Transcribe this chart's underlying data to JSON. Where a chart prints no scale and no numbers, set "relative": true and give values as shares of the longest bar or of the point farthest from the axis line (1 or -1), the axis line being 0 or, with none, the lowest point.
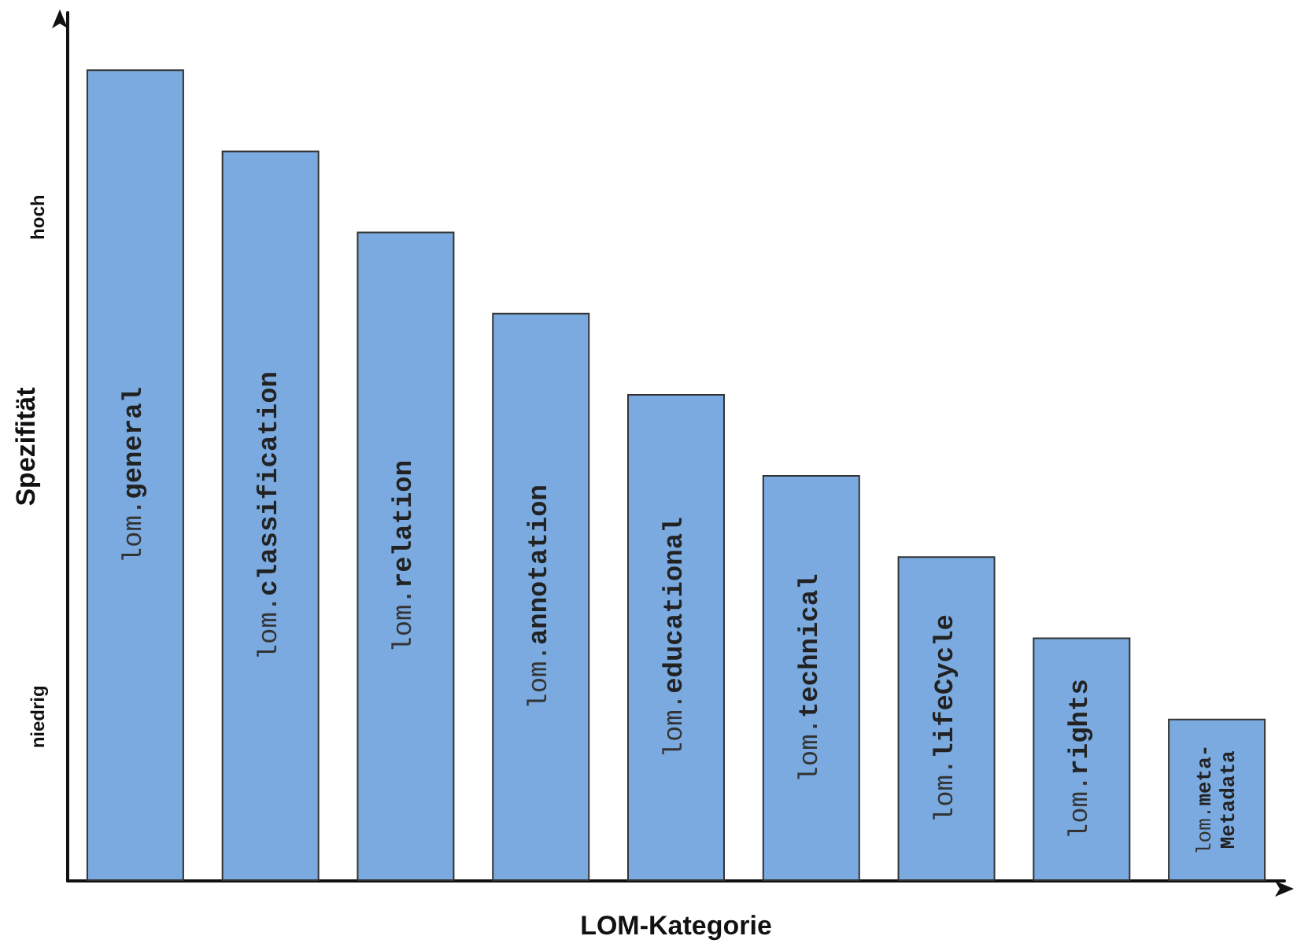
{
  "chart_data": {
    "type": "bar",
    "relative": true,
    "xlabel": "LOM-Kategorie",
    "ylabel": "Spezifität",
    "categories": [
      "lom.general",
      "lom.classification",
      "lom.relation",
      "lom.annotation",
      "lom.educational",
      "lom.technical",
      "lom.lifeCycle",
      "lom.rights",
      "lom.meta-Metadata"
    ],
    "values": [
      1,
      0.9,
      0.8,
      0.7,
      0.6,
      0.5,
      0.4,
      0.3,
      0.2
    ],
    "color": "#7aaadf",
    "annotations": [
      "hoch",
      "niedrig"
    ]
  }
}
